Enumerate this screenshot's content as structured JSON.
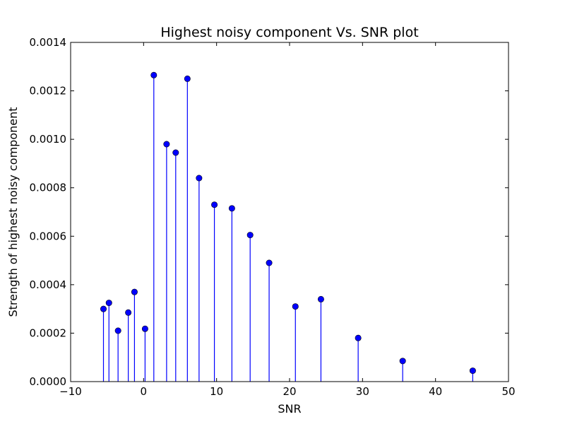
{
  "chart_data": {
    "type": "stem",
    "title": "Highest noisy component Vs. SNR plot",
    "xlabel": "SNR",
    "ylabel": "Strength of highest noisy component",
    "xlim": [
      -10,
      50
    ],
    "ylim": [
      0,
      0.0014
    ],
    "xticks": [
      "−10",
      "0",
      "10",
      "20",
      "30",
      "40",
      "50"
    ],
    "xtick_values": [
      -10,
      0,
      10,
      20,
      30,
      40,
      50
    ],
    "yticks": [
      "0.0000",
      "0.0002",
      "0.0004",
      "0.0006",
      "0.0008",
      "0.0010",
      "0.0012",
      "0.0014"
    ],
    "ytick_values": [
      0,
      0.0002,
      0.0004,
      0.0006,
      0.0008,
      0.001,
      0.0012,
      0.0014
    ],
    "grid": false,
    "color": "#0000ff",
    "x": [
      -5.5,
      -4.75,
      -3.5,
      -2.1,
      -1.25,
      0.2,
      1.4,
      3.15,
      4.4,
      6.0,
      7.6,
      9.7,
      12.1,
      14.6,
      17.2,
      20.8,
      24.3,
      29.4,
      35.5,
      45.1
    ],
    "y": [
      0.0003,
      0.000325,
      0.00021,
      0.000285,
      0.00037,
      0.000218,
      0.001265,
      0.00098,
      0.000945,
      0.00125,
      0.00084,
      0.00073,
      0.000715,
      0.000605,
      0.00049,
      0.00031,
      0.00034,
      0.00018,
      8.5e-05,
      4.5e-05
    ]
  }
}
